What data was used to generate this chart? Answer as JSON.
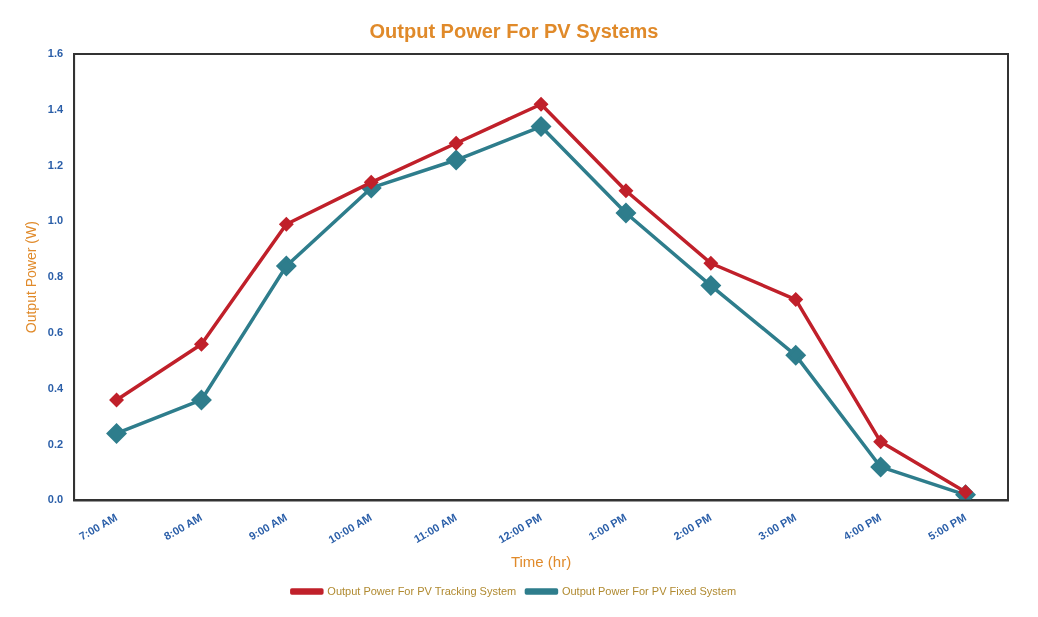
{
  "chart_data": {
    "type": "line",
    "title": "Output Power For PV Systems",
    "xlabel": "Time (hr)",
    "ylabel": "Output Power (W)",
    "categories": [
      "7:00 AM",
      "8:00 AM",
      "9:00 AM",
      "10:00 AM",
      "11:00 AM",
      "12:00 PM",
      "1:00 PM",
      "2:00 PM",
      "3:00 PM",
      "4:00 PM",
      "5:00 PM"
    ],
    "series": [
      {
        "name": "Output Power For PV Tracking System",
        "color": "#c0202a",
        "values": [
          0.36,
          0.56,
          0.99,
          1.14,
          1.28,
          1.42,
          1.11,
          0.85,
          0.72,
          0.21,
          0.03
        ]
      },
      {
        "name": "Output Power For PV Fixed System",
        "color": "#2e7d8c",
        "values": [
          0.24,
          0.36,
          0.84,
          1.12,
          1.22,
          1.34,
          1.03,
          0.77,
          0.52,
          0.12,
          0.02
        ]
      }
    ],
    "ylim": [
      0,
      1.6
    ],
    "yticks": [
      {
        "value": 0,
        "label": "0.0"
      },
      {
        "value": 0.2,
        "label": "0.2"
      },
      {
        "value": 0.4,
        "label": "0.4"
      },
      {
        "value": 0.6,
        "label": "0.6"
      },
      {
        "value": 0.8,
        "label": "0.8"
      },
      {
        "value": 1,
        "label": "1.0"
      },
      {
        "value": 1.2,
        "label": "1.2"
      },
      {
        "value": 1.4,
        "label": "1.4"
      },
      {
        "value": 1.6,
        "label": "1.6"
      }
    ],
    "grid": false,
    "legend": "bottom",
    "marker": "diamond",
    "line_style": "solid"
  }
}
